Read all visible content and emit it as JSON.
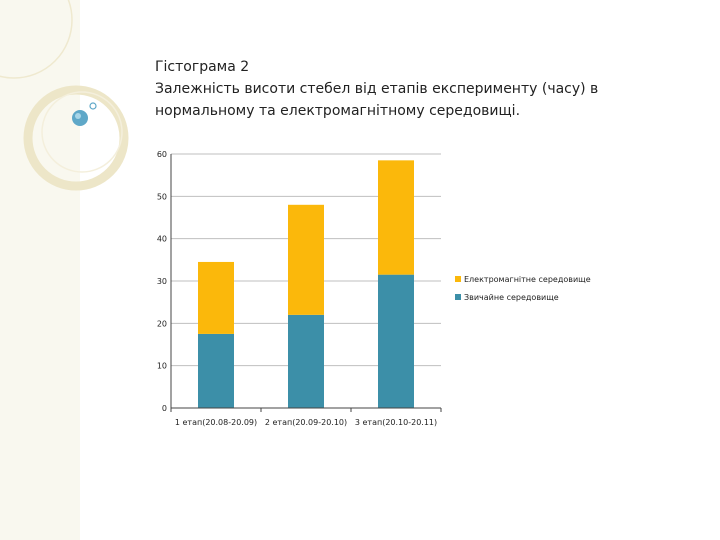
{
  "slide": {
    "heading": "Гістограма 2",
    "subheading_line1": "Залежність висоти стебел від етапів експерименту (часу) в",
    "subheading_line2": "нормальному та електромагнітному середовищі."
  },
  "colors": {
    "background": "#ffffff",
    "side_panel": "#f9f8ef",
    "decor_ring": "#ede6c8",
    "decor_bubble": "#5fa8c8",
    "series_normal": "#3c8fa8",
    "series_em": "#fbb80b",
    "grid": "#bfbfbf",
    "text": "#222222"
  },
  "chart_data": {
    "type": "bar",
    "stacked": true,
    "categories": [
      "1 етап(20.08-20.09)",
      "2 етап(20.09-20.10)",
      "3 етап(20.10-20.11)"
    ],
    "series": [
      {
        "name": "Звичайне середовище",
        "color": "#3c8fa8",
        "values": [
          17.5,
          22,
          31.5
        ]
      },
      {
        "name": "Електромагнітне середовище",
        "color": "#fbb80b",
        "values": [
          17,
          26,
          27
        ]
      }
    ],
    "legend_order": [
      "Електромагнітне середовище",
      "Звичайне середовище"
    ],
    "y_ticks": [
      0,
      10,
      20,
      30,
      40,
      50,
      60
    ],
    "ylim": [
      0,
      60
    ],
    "grid": true,
    "legend_position": "right",
    "title": "",
    "xlabel": "",
    "ylabel": ""
  }
}
